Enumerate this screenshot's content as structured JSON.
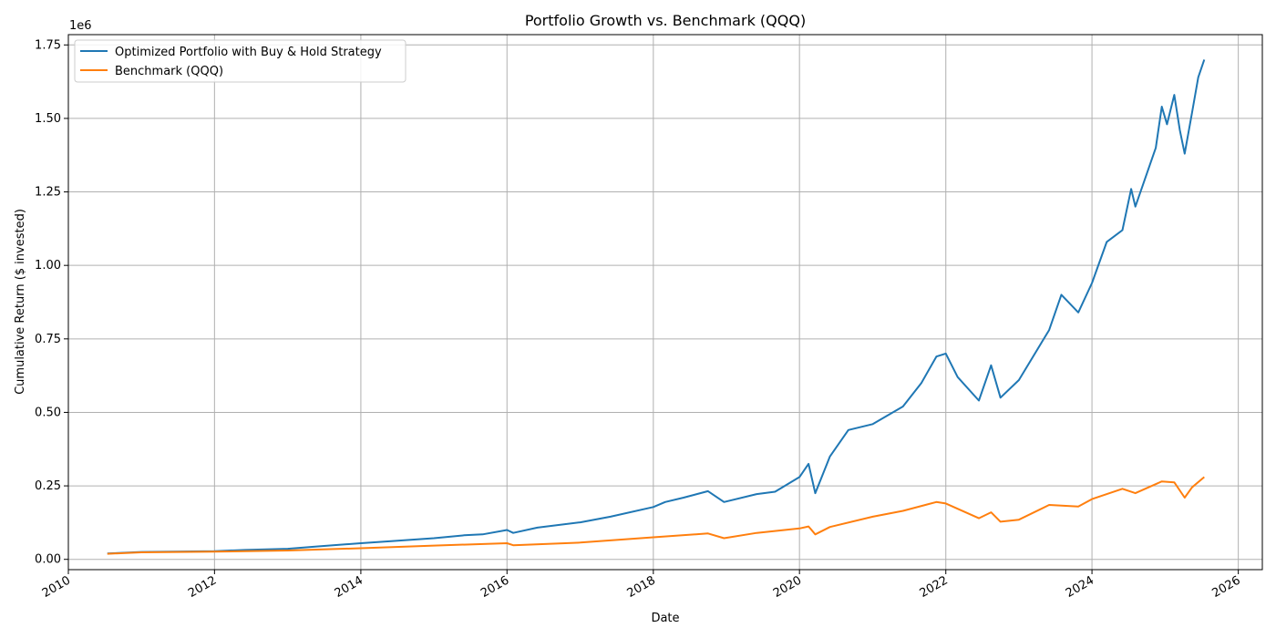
{
  "chart_data": {
    "type": "line",
    "title": "Portfolio Growth vs. Benchmark (QQQ)",
    "xlabel": "Date",
    "ylabel": "Cumulative Return ($ invested)",
    "y_offset_label": "1e6",
    "xlim": [
      "2010-01-01",
      "2026-05-01"
    ],
    "ylim": [
      -35000,
      1785000
    ],
    "grid": true,
    "legend_position": "top-left",
    "x_ticks": [
      "2010-01-01",
      "2012-01-01",
      "2014-01-01",
      "2016-01-01",
      "2018-01-01",
      "2020-01-01",
      "2022-01-01",
      "2024-01-01",
      "2026-01-01"
    ],
    "x_tick_labels": [
      "2010",
      "2012",
      "2014",
      "2016",
      "2018",
      "2020",
      "2022",
      "2024",
      "2026"
    ],
    "y_ticks": [
      0,
      250000,
      500000,
      750000,
      1000000,
      1250000,
      1500000,
      1750000
    ],
    "y_tick_labels": [
      "0.00",
      "0.25",
      "0.50",
      "0.75",
      "1.00",
      "1.25",
      "1.50",
      "1.75"
    ],
    "series": [
      {
        "name": "Optimized Portfolio with Buy & Hold Strategy",
        "color": "#1f77b4",
        "x": [
          "2010-07-15",
          "2011-01-01",
          "2011-06-01",
          "2012-01-01",
          "2012-06-01",
          "2013-01-01",
          "2013-06-01",
          "2014-01-01",
          "2014-06-01",
          "2015-01-01",
          "2015-06-01",
          "2015-09-01",
          "2016-01-01",
          "2016-02-01",
          "2016-06-01",
          "2017-01-01",
          "2017-06-01",
          "2018-01-01",
          "2018-03-01",
          "2018-06-01",
          "2018-10-01",
          "2018-12-20",
          "2019-06-01",
          "2019-09-01",
          "2020-01-01",
          "2020-02-15",
          "2020-03-20",
          "2020-06-01",
          "2020-09-01",
          "2021-01-01",
          "2021-06-01",
          "2021-09-01",
          "2021-11-15",
          "2022-01-01",
          "2022-03-01",
          "2022-06-15",
          "2022-08-15",
          "2022-10-01",
          "2023-01-01",
          "2023-06-01",
          "2023-08-01",
          "2023-10-25",
          "2024-01-01",
          "2024-03-15",
          "2024-06-01",
          "2024-07-15",
          "2024-08-05",
          "2024-11-15",
          "2024-12-15",
          "2025-01-10",
          "2025-02-15",
          "2025-03-15",
          "2025-04-08",
          "2025-05-15",
          "2025-06-15",
          "2025-07-15"
        ],
        "y": [
          20000,
          25000,
          26000,
          28000,
          32000,
          36000,
          44000,
          55000,
          62000,
          72000,
          82000,
          85000,
          100000,
          90000,
          108000,
          126000,
          145000,
          178000,
          195000,
          210000,
          232000,
          195000,
          222000,
          230000,
          280000,
          325000,
          225000,
          350000,
          440000,
          460000,
          520000,
          600000,
          690000,
          700000,
          620000,
          540000,
          660000,
          550000,
          610000,
          780000,
          900000,
          840000,
          940000,
          1080000,
          1120000,
          1260000,
          1200000,
          1400000,
          1540000,
          1480000,
          1580000,
          1460000,
          1380000,
          1520000,
          1640000,
          1700000
        ]
      },
      {
        "name": "Benchmark (QQQ)",
        "color": "#ff7f0e",
        "x": [
          "2010-07-15",
          "2011-01-01",
          "2012-01-01",
          "2013-01-01",
          "2014-01-01",
          "2015-01-01",
          "2016-01-01",
          "2016-02-01",
          "2017-01-01",
          "2018-01-01",
          "2018-10-01",
          "2018-12-20",
          "2019-06-01",
          "2020-01-01",
          "2020-02-15",
          "2020-03-20",
          "2020-06-01",
          "2021-01-01",
          "2021-06-01",
          "2021-11-15",
          "2022-01-01",
          "2022-06-15",
          "2022-08-15",
          "2022-10-01",
          "2023-01-01",
          "2023-06-01",
          "2023-10-25",
          "2024-01-01",
          "2024-06-01",
          "2024-08-05",
          "2024-12-15",
          "2025-02-15",
          "2025-04-08",
          "2025-05-15",
          "2025-07-15"
        ],
        "y": [
          19000,
          24000,
          26000,
          30000,
          38000,
          47000,
          55000,
          48000,
          57000,
          75000,
          88000,
          72000,
          90000,
          105000,
          112000,
          85000,
          110000,
          145000,
          165000,
          195000,
          190000,
          140000,
          160000,
          128000,
          135000,
          185000,
          180000,
          205000,
          240000,
          225000,
          265000,
          262000,
          210000,
          245000,
          280000
        ]
      }
    ]
  }
}
